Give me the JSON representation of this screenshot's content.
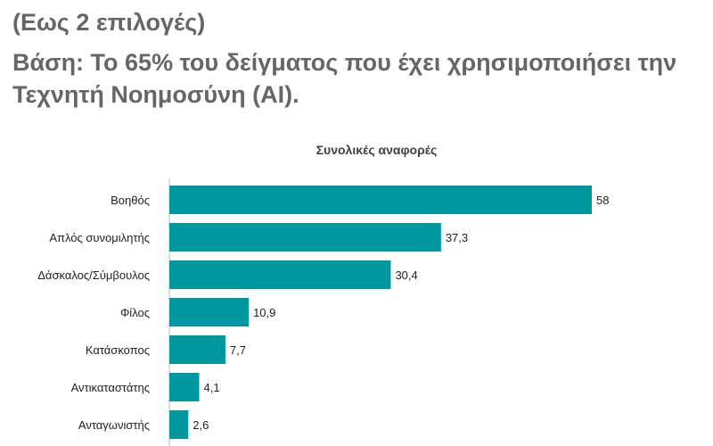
{
  "header": {
    "note": "(Εως 2 επιλογές)",
    "subtitle": "Βάση: Το 65% του δείγματος που έχει χρησιμοποιήσει την Τεχνητή Νοημοσύνη (AI)."
  },
  "chart_data": {
    "type": "bar",
    "orientation": "horizontal",
    "title": "Συνολικές αναφορές",
    "categories": [
      "Βοηθός",
      "Απλός συνομιλητής",
      "Δάσκαλος/Σύμβουλος",
      "Φίλος",
      "Κατάσκοπος",
      "Αντικαταστάτης",
      "Ανταγωνιστής"
    ],
    "values": [
      58,
      37.3,
      30.4,
      10.9,
      7.7,
      4.1,
      2.6
    ],
    "value_labels": [
      "58",
      "37,3",
      "30,4",
      "10,9",
      "7,7",
      "4,1",
      "2,6"
    ],
    "bar_color": "#00979e",
    "xlim": [
      0,
      58
    ],
    "grid": false,
    "legend": "none"
  }
}
